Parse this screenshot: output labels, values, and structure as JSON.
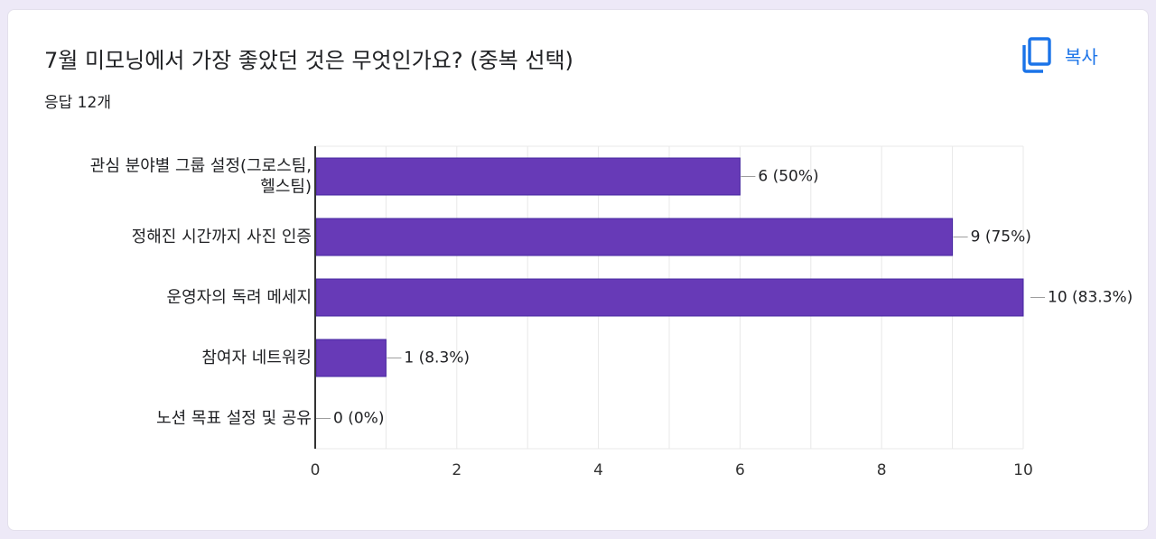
{
  "question": {
    "title": "7월 미모닝에서 가장 좋았던 것은 무엇인가요? (중복 선택)",
    "response_count": "응답 12개"
  },
  "copy_button": {
    "label": "복사",
    "icon": "copy-icon"
  },
  "colors": {
    "bar": "#673ab7",
    "bar_border": "#4527a0",
    "accent": "#1a73e8",
    "grid": "#e8e8e8",
    "text": "#202124"
  },
  "chart_data": {
    "type": "bar",
    "orientation": "horizontal",
    "categories": [
      [
        "관심 분야별 그룹 설정(그로스팀,",
        "헬스팀)"
      ],
      [
        "정해진 시간까지 사진 인증"
      ],
      [
        "운영자의 독려 메세지"
      ],
      [
        "참여자 네트워킹"
      ],
      [
        "노션 목표 설정 및 공유"
      ]
    ],
    "values": [
      6,
      9,
      10,
      1,
      0
    ],
    "data_labels": [
      "6 (50%)",
      "9 (75%)",
      "10 (83.3%)",
      "1 (8.3%)",
      "0 (0%)"
    ],
    "xlim": [
      0,
      10
    ],
    "xticks": [
      0,
      2,
      4,
      6,
      8,
      10
    ],
    "grid": true,
    "legend": "none"
  }
}
